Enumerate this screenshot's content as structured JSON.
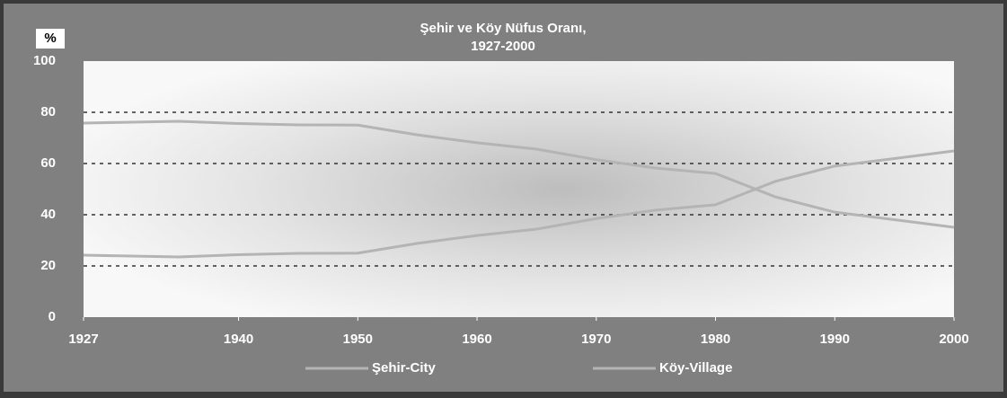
{
  "chart_data": {
    "type": "line",
    "title": [
      "Şehir ve Köy Nüfus Oranı,",
      "1927-2000"
    ],
    "y_label": "%",
    "x": [
      1927,
      1935,
      1940,
      1945,
      1950,
      1955,
      1960,
      1965,
      1970,
      1975,
      1980,
      1985,
      1990,
      2000
    ],
    "series": [
      {
        "name": "Şehir-City",
        "color": "#b4b4b4",
        "values": [
          24.2,
          23.5,
          24.4,
          24.9,
          25.0,
          28.8,
          31.9,
          34.4,
          38.5,
          41.8,
          43.9,
          53.0,
          59.0,
          64.9
        ]
      },
      {
        "name": "Köy-Village",
        "color": "#b4b4b4",
        "values": [
          75.8,
          76.5,
          75.6,
          75.1,
          75.0,
          71.2,
          68.1,
          65.6,
          61.5,
          58.2,
          56.1,
          47.0,
          41.0,
          35.1
        ]
      }
    ],
    "xlim": [
      1927,
      2000
    ],
    "xticks": [
      1927,
      1940,
      1950,
      1960,
      1970,
      1980,
      1990,
      2000
    ],
    "ylim": [
      0,
      100
    ],
    "yticks": [
      0,
      20,
      40,
      60,
      80,
      100
    ],
    "grid": true,
    "legend": "bottom"
  }
}
